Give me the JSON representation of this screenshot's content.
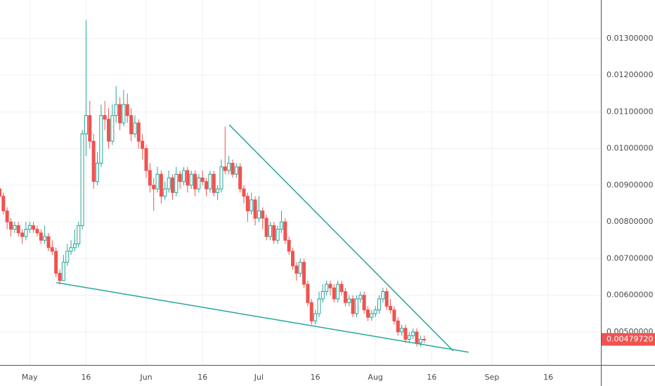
{
  "chart_data": {
    "type": "candlestick",
    "x": [
      113,
      114,
      115,
      116,
      117,
      118,
      119,
      120,
      121,
      122,
      123,
      124,
      125,
      126,
      127,
      128,
      129,
      130,
      131,
      132,
      133,
      134,
      135,
      136,
      137,
      138,
      139,
      140,
      141,
      142,
      143,
      144,
      145,
      146,
      147,
      148,
      149,
      150,
      151,
      152,
      153,
      154,
      155,
      156,
      157,
      158,
      159,
      160,
      161,
      162,
      163,
      164,
      165,
      166,
      167,
      168,
      169,
      170,
      171,
      172,
      173,
      174,
      175,
      176,
      177,
      178,
      179,
      180,
      181,
      182,
      183,
      184,
      185,
      186,
      187,
      188,
      189,
      190,
      191,
      192,
      193,
      194,
      195,
      196,
      197,
      198,
      199,
      200,
      201,
      202,
      203,
      204,
      205,
      206,
      207,
      208,
      209,
      210,
      211,
      212,
      213,
      214,
      215,
      216,
      217,
      218,
      219,
      220,
      221,
      222,
      223,
      224,
      225,
      226
    ],
    "ohlc": [
      [
        0.0089,
        0.0091,
        0.0086,
        0.0087
      ],
      [
        0.0087,
        0.0088,
        0.0082,
        0.0083
      ],
      [
        0.0083,
        0.0084,
        0.0078,
        0.008
      ],
      [
        0.008,
        0.0081,
        0.0076,
        0.0078
      ],
      [
        0.0078,
        0.008,
        0.0077,
        0.0079
      ],
      [
        0.0079,
        0.008,
        0.0076,
        0.0077
      ],
      [
        0.0077,
        0.0078,
        0.0074,
        0.0076
      ],
      [
        0.0076,
        0.008,
        0.0075,
        0.0078
      ],
      [
        0.0078,
        0.008,
        0.0077,
        0.0079
      ],
      [
        0.0079,
        0.008,
        0.0077,
        0.0078
      ],
      [
        0.0078,
        0.0079,
        0.0076,
        0.0077
      ],
      [
        0.0077,
        0.0078,
        0.0074,
        0.0075
      ],
      [
        0.0075,
        0.0079,
        0.0074,
        0.0076
      ],
      [
        0.0076,
        0.0077,
        0.0072,
        0.0073
      ],
      [
        0.0073,
        0.0075,
        0.0071,
        0.0072
      ],
      [
        0.0072,
        0.0073,
        0.0065,
        0.0066
      ],
      [
        0.0066,
        0.0067,
        0.0063,
        0.0064
      ],
      [
        0.0064,
        0.0071,
        0.0064,
        0.0069
      ],
      [
        0.0069,
        0.0074,
        0.0068,
        0.0072
      ],
      [
        0.0072,
        0.0075,
        0.0071,
        0.0073
      ],
      [
        0.0073,
        0.0078,
        0.0072,
        0.0074
      ],
      [
        0.0074,
        0.008,
        0.0073,
        0.0079
      ],
      [
        0.0079,
        0.0105,
        0.0078,
        0.0104
      ],
      [
        0.0104,
        0.0135,
        0.0098,
        0.0109
      ],
      [
        0.0109,
        0.0113,
        0.01,
        0.0102
      ],
      [
        0.0102,
        0.0104,
        0.0089,
        0.0091
      ],
      [
        0.0091,
        0.0099,
        0.009,
        0.0096
      ],
      [
        0.0096,
        0.0112,
        0.0095,
        0.0109
      ],
      [
        0.0109,
        0.0113,
        0.0105,
        0.0108
      ],
      [
        0.0108,
        0.0111,
        0.01,
        0.0102
      ],
      [
        0.0102,
        0.0112,
        0.0101,
        0.0109
      ],
      [
        0.0109,
        0.0117,
        0.0107,
        0.0112
      ],
      [
        0.0112,
        0.0114,
        0.0105,
        0.0107
      ],
      [
        0.0107,
        0.0116,
        0.0106,
        0.0112
      ],
      [
        0.0112,
        0.0115,
        0.0107,
        0.0109
      ],
      [
        0.0109,
        0.0111,
        0.0102,
        0.0104
      ],
      [
        0.0104,
        0.0109,
        0.0103,
        0.0107
      ],
      [
        0.0107,
        0.0108,
        0.01,
        0.0102
      ],
      [
        0.0102,
        0.0104,
        0.0097,
        0.01
      ],
      [
        0.01,
        0.0101,
        0.0092,
        0.0094
      ],
      [
        0.0094,
        0.0096,
        0.0088,
        0.009
      ],
      [
        0.009,
        0.0092,
        0.0083,
        0.0089
      ],
      [
        0.0089,
        0.0095,
        0.0088,
        0.0093
      ],
      [
        0.0093,
        0.0094,
        0.0085,
        0.0087
      ],
      [
        0.0087,
        0.0091,
        0.0086,
        0.0089
      ],
      [
        0.0089,
        0.0094,
        0.0088,
        0.0092
      ],
      [
        0.0092,
        0.0093,
        0.0086,
        0.0088
      ],
      [
        0.0088,
        0.0095,
        0.0087,
        0.0093
      ],
      [
        0.0093,
        0.0094,
        0.0089,
        0.0091
      ],
      [
        0.0091,
        0.0095,
        0.009,
        0.0094
      ],
      [
        0.0094,
        0.0095,
        0.0088,
        0.009
      ],
      [
        0.009,
        0.0094,
        0.0089,
        0.0093
      ],
      [
        0.0093,
        0.0094,
        0.0087,
        0.0089
      ],
      [
        0.0089,
        0.0093,
        0.0088,
        0.0092
      ],
      [
        0.0092,
        0.0094,
        0.009,
        0.0091
      ],
      [
        0.0091,
        0.0092,
        0.0087,
        0.0089
      ],
      [
        0.0089,
        0.0094,
        0.0088,
        0.0093
      ],
      [
        0.0093,
        0.0094,
        0.0087,
        0.0088
      ],
      [
        0.0088,
        0.009,
        0.0086,
        0.0089
      ],
      [
        0.0089,
        0.0097,
        0.0088,
        0.0095
      ],
      [
        0.0095,
        0.0106,
        0.0093,
        0.0094
      ],
      [
        0.0094,
        0.0098,
        0.0093,
        0.0096
      ],
      [
        0.0096,
        0.0097,
        0.0092,
        0.0093
      ],
      [
        0.0093,
        0.0096,
        0.0092,
        0.0095
      ],
      [
        0.0095,
        0.0096,
        0.0088,
        0.0089
      ],
      [
        0.0089,
        0.009,
        0.0085,
        0.0087
      ],
      [
        0.0087,
        0.0088,
        0.008,
        0.0083
      ],
      [
        0.0083,
        0.0088,
        0.0082,
        0.0086
      ],
      [
        0.0086,
        0.0087,
        0.0079,
        0.0081
      ],
      [
        0.0081,
        0.0087,
        0.008,
        0.0083
      ],
      [
        0.0083,
        0.0084,
        0.0078,
        0.0081
      ],
      [
        0.0081,
        0.0082,
        0.0075,
        0.0076
      ],
      [
        0.0076,
        0.008,
        0.0075,
        0.0079
      ],
      [
        0.0079,
        0.008,
        0.0074,
        0.0075
      ],
      [
        0.0075,
        0.0079,
        0.0074,
        0.0078
      ],
      [
        0.0078,
        0.0083,
        0.0077,
        0.008
      ],
      [
        0.008,
        0.0081,
        0.0074,
        0.0075
      ],
      [
        0.0075,
        0.0076,
        0.0071,
        0.0072
      ],
      [
        0.0072,
        0.0073,
        0.0067,
        0.0068
      ],
      [
        0.0068,
        0.0069,
        0.0064,
        0.0066
      ],
      [
        0.0066,
        0.007,
        0.0065,
        0.0069
      ],
      [
        0.0069,
        0.007,
        0.0062,
        0.0063
      ],
      [
        0.0063,
        0.0064,
        0.0057,
        0.0058
      ],
      [
        0.0058,
        0.0059,
        0.0052,
        0.0053
      ],
      [
        0.0053,
        0.0056,
        0.0052,
        0.0055
      ],
      [
        0.0055,
        0.0061,
        0.0054,
        0.0059
      ],
      [
        0.0059,
        0.0063,
        0.0058,
        0.0061
      ],
      [
        0.0061,
        0.0064,
        0.006,
        0.0063
      ],
      [
        0.0063,
        0.0064,
        0.006,
        0.0062
      ],
      [
        0.0062,
        0.0063,
        0.0058,
        0.0059
      ],
      [
        0.0059,
        0.0064,
        0.0058,
        0.0063
      ],
      [
        0.0063,
        0.0064,
        0.006,
        0.0061
      ],
      [
        0.0061,
        0.0062,
        0.0057,
        0.0058
      ],
      [
        0.0058,
        0.006,
        0.0057,
        0.0059
      ],
      [
        0.0059,
        0.006,
        0.0054,
        0.0055
      ],
      [
        0.0055,
        0.006,
        0.0054,
        0.0059
      ],
      [
        0.0059,
        0.0061,
        0.0058,
        0.006
      ],
      [
        0.006,
        0.0061,
        0.0055,
        0.0056
      ],
      [
        0.0056,
        0.0057,
        0.0053,
        0.0054
      ],
      [
        0.0054,
        0.0056,
        0.0053,
        0.0055
      ],
      [
        0.0055,
        0.0057,
        0.0054,
        0.0056
      ],
      [
        0.0056,
        0.006,
        0.0055,
        0.0059
      ],
      [
        0.0059,
        0.0062,
        0.0058,
        0.0061
      ],
      [
        0.0061,
        0.0062,
        0.0056,
        0.0057
      ],
      [
        0.0057,
        0.0059,
        0.0055,
        0.0056
      ],
      [
        0.0056,
        0.0057,
        0.0052,
        0.0053
      ],
      [
        0.0053,
        0.0054,
        0.0049,
        0.005
      ],
      [
        0.005,
        0.0052,
        0.0049,
        0.0051
      ],
      [
        0.0051,
        0.0052,
        0.0047,
        0.0048
      ],
      [
        0.0048,
        0.005,
        0.0047,
        0.0049
      ],
      [
        0.0049,
        0.0051,
        0.0048,
        0.005
      ],
      [
        0.005,
        0.0051,
        0.0046,
        0.0047
      ],
      [
        0.0047,
        0.0049,
        0.0046,
        0.0048
      ],
      [
        0.0048,
        0.0049,
        0.0047,
        0.0047972
      ]
    ],
    "up_color": "#26a69a",
    "down_color": "#ef5350",
    "trendlines": [
      {
        "x": [
          174.1,
          233.7
        ],
        "y": [
          0.010648,
          0.004484
        ],
        "color": "#26a69a"
      },
      {
        "x": [
          128.1,
          237.8
        ],
        "y": [
          0.006346,
          0.004446
        ],
        "color": "#26a69a"
      }
    ],
    "last_price": {
      "value": 0.0047972,
      "label": "0.00479720"
    },
    "xlim": [
      113.1,
      273
    ],
    "xticks": [
      {
        "value": 121,
        "label": "May"
      },
      {
        "value": 136,
        "label": "16"
      },
      {
        "value": 152,
        "label": "Jun"
      },
      {
        "value": 167,
        "label": "16"
      },
      {
        "value": 182,
        "label": "Jul"
      },
      {
        "value": 197,
        "label": "16"
      },
      {
        "value": 213,
        "label": "Aug"
      },
      {
        "value": 228,
        "label": "16"
      },
      {
        "value": 244,
        "label": "Sep"
      },
      {
        "value": 259,
        "label": "16"
      }
    ],
    "ylim": [
      0.0041,
      0.01405
    ],
    "yticks": [
      {
        "value": 0.005,
        "label": "0.00500000"
      },
      {
        "value": 0.006,
        "label": "0.00600000"
      },
      {
        "value": 0.007,
        "label": "0.00700000"
      },
      {
        "value": 0.008,
        "label": "0.00800000"
      },
      {
        "value": 0.009,
        "label": "0.00900000"
      },
      {
        "value": 0.01,
        "label": "0.01000000"
      },
      {
        "value": 0.011,
        "label": "0.01100000"
      },
      {
        "value": 0.012,
        "label": "0.01200000"
      },
      {
        "value": 0.013,
        "label": "0.01300000"
      }
    ],
    "grid": true
  }
}
